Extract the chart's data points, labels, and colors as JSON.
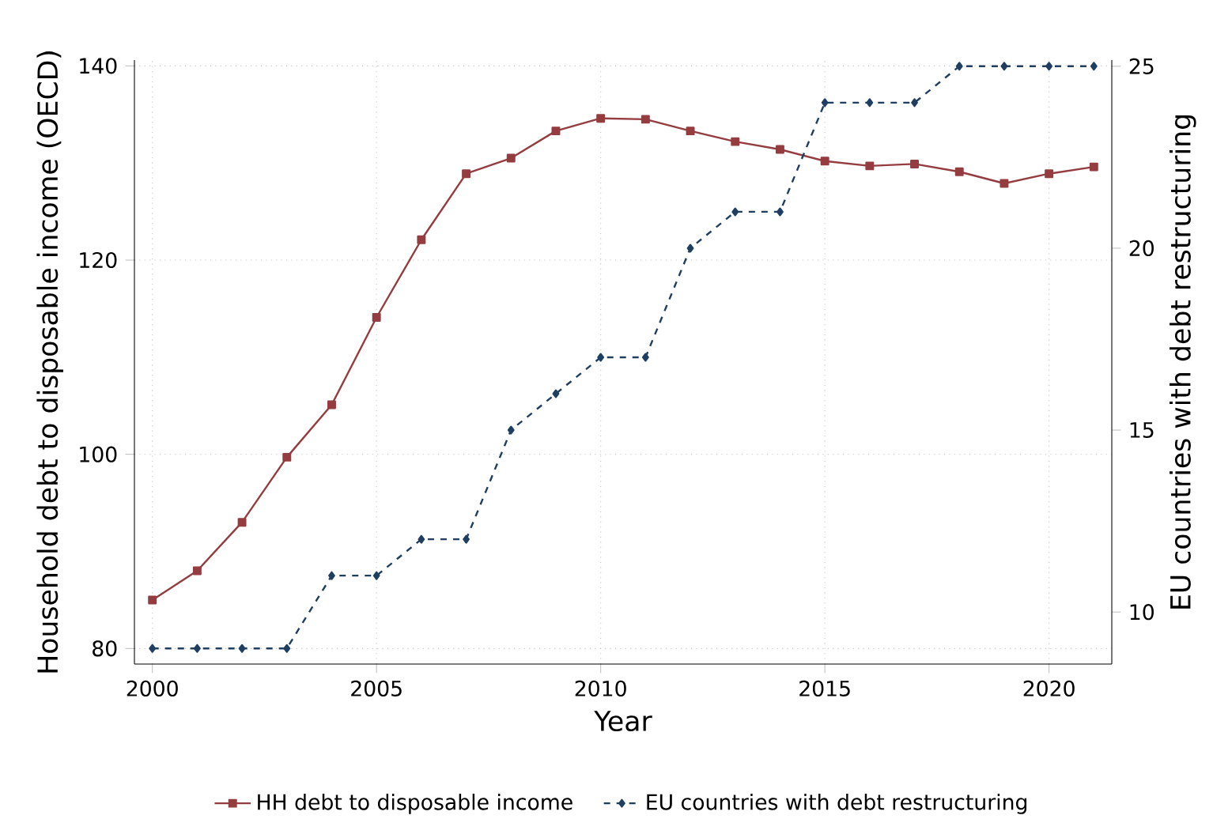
{
  "chart_data": {
    "type": "line",
    "xlabel": "Year",
    "ylabel": "Household debt to disposable income (OECD)",
    "y2label": "EU countries with debt restructuring",
    "x": [
      2000,
      2001,
      2002,
      2003,
      2004,
      2005,
      2006,
      2007,
      2008,
      2009,
      2010,
      2011,
      2012,
      2013,
      2014,
      2015,
      2016,
      2017,
      2018,
      2019,
      2020,
      2021
    ],
    "series": [
      {
        "name": "HH debt to disposable income",
        "color": "#943c3f",
        "marker": "square",
        "line_style": "solid",
        "values": [
          85,
          88,
          93,
          99.7,
          105.1,
          114.1,
          122.1,
          128.9,
          130.5,
          133.3,
          134.6,
          134.5,
          133.3,
          132.2,
          131.4,
          130.2,
          129.7,
          129.9,
          129.1,
          127.9,
          128.9,
          129.6
        ]
      },
      {
        "name": "EU countries with debt restructuring",
        "color": "#1f3f62",
        "marker": "diamond",
        "line_style": "dashed",
        "axis": "y2",
        "values": [
          9,
          9,
          9,
          9,
          11,
          11,
          12,
          12,
          15,
          16,
          17,
          17,
          20,
          21,
          21,
          24,
          24,
          24,
          25,
          25,
          25,
          25
        ]
      }
    ],
    "xlim": [
      1999.6,
      2021.4
    ],
    "xticks": [
      2000,
      2005,
      2010,
      2015,
      2020
    ],
    "ylim": [
      78.4,
      140.6
    ],
    "yticks": [
      80,
      100,
      120,
      140
    ],
    "y2lim": [
      8.57,
      25.17
    ],
    "y2ticks": [
      10,
      15,
      20,
      25
    ],
    "grid": true,
    "legend": "bottom"
  }
}
